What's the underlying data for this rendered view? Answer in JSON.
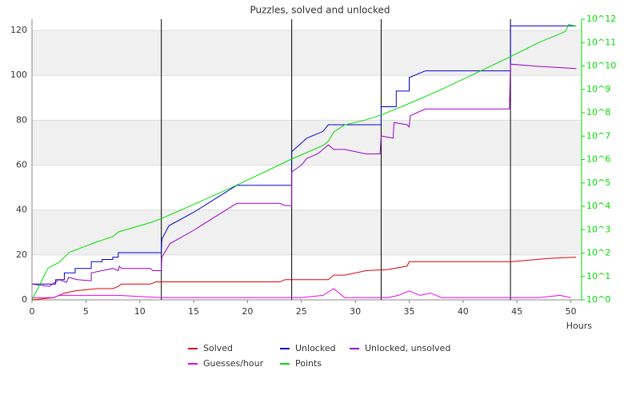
{
  "chart_data": {
    "type": "line",
    "title": "Puzzles, solved and unlocked",
    "x_label": "Hours",
    "xlim": [
      0,
      51
    ],
    "xticks": [
      0,
      5,
      10,
      15,
      20,
      25,
      30,
      35,
      40,
      45,
      50
    ],
    "ylim": [
      0,
      125
    ],
    "yticks": [
      0,
      20,
      40,
      60,
      80,
      100,
      120
    ],
    "y2lim": [
      1,
      1000000000000
    ],
    "y2_log_scale": true,
    "y2ticks": [
      {
        "value": 1,
        "label": "10^0"
      },
      {
        "value": 10,
        "label": "10^1"
      },
      {
        "value": 100,
        "label": "10^2"
      },
      {
        "value": 1000,
        "label": "10^3"
      },
      {
        "value": 10000,
        "label": "10^4"
      },
      {
        "value": 100000,
        "label": "10^5"
      },
      {
        "value": 1000000,
        "label": "10^6"
      },
      {
        "value": 10000000,
        "label": "10^7"
      },
      {
        "value": 100000000,
        "label": "10^8"
      },
      {
        "value": 1000000000,
        "label": "10^9"
      },
      {
        "value": 10000000000,
        "label": "10^10"
      },
      {
        "value": 100000000000,
        "label": "10^11"
      },
      {
        "value": 1000000000000,
        "label": "10^12"
      }
    ],
    "y2_color": "#00dd00",
    "vlines": [
      12,
      24.1,
      32.4,
      44.4
    ],
    "series": [
      {
        "name": "Solved",
        "color": "#dd0000",
        "x": [
          0,
          2,
          3,
          4,
          5,
          6,
          7.5,
          8,
          8.3,
          11,
          11.5,
          12,
          23,
          23.5,
          27.5,
          28,
          29,
          31,
          33,
          34.8,
          35,
          44.5,
          48,
          50.5
        ],
        "values": [
          0,
          1,
          3,
          4,
          4.5,
          5,
          5,
          6,
          7,
          7,
          8,
          8,
          8,
          9,
          9,
          11,
          11,
          13,
          13.5,
          15,
          17,
          17,
          18.5,
          19
        ]
      },
      {
        "name": "Unlocked",
        "color": "#0000cc",
        "x": [
          0,
          1.6,
          2.2,
          2.2,
          3,
          3,
          4,
          4,
          5.5,
          5.5,
          6.5,
          6.5,
          7.5,
          7.5,
          8,
          8,
          12,
          12.05,
          12.7,
          15,
          19,
          24.1,
          24.1,
          25.5,
          27,
          27.5,
          32.4,
          32.4,
          33.8,
          33.8,
          35,
          35,
          36.5,
          44.4,
          44.4,
          50.5
        ],
        "values": [
          7,
          7,
          7,
          9,
          9,
          12,
          12,
          14,
          14,
          17,
          17,
          18,
          18,
          19,
          19,
          21,
          21,
          27,
          33,
          39,
          51,
          51,
          66,
          72,
          75,
          78,
          78,
          86,
          86,
          93,
          93,
          99,
          102,
          102,
          122,
          122
        ]
      },
      {
        "name": "Unlocked, unsolved",
        "color": "#9900cc",
        "x": [
          0,
          1.6,
          2.5,
          3.2,
          3.4,
          4.2,
          5.5,
          5.5,
          7.5,
          8,
          8.1,
          8.3,
          11,
          11.2,
          12,
          12.05,
          12.8,
          15,
          17,
          19,
          23,
          23.5,
          24.1,
          24.1,
          25,
          25.5,
          26.5,
          27.5,
          28,
          29,
          31,
          32.3,
          32.4,
          33.5,
          33.6,
          34.8,
          35,
          35.1,
          36.5,
          44.3,
          44.4,
          47,
          50.5
        ],
        "values": [
          7,
          6,
          9,
          7.8,
          10,
          9,
          8.5,
          12,
          14,
          13,
          15,
          14,
          14,
          13,
          13,
          19,
          25,
          31,
          37,
          43,
          43,
          42,
          42,
          57,
          60,
          63,
          65,
          69,
          67,
          67,
          65,
          65,
          73,
          72,
          79,
          78,
          77,
          82,
          85,
          85,
          105,
          104,
          103
        ]
      },
      {
        "name": "Guesses/hour",
        "color": "#ee00ee",
        "x": [
          0,
          2,
          2.5,
          4,
          8,
          10,
          12,
          25,
          27,
          28,
          29,
          32,
          33,
          34,
          35,
          36,
          37,
          38,
          44,
          47,
          49,
          50
        ],
        "values": [
          1,
          1,
          2,
          2,
          2,
          1.5,
          1,
          1,
          2,
          5,
          1,
          1,
          1,
          2,
          4,
          2,
          3,
          1,
          1,
          1,
          2,
          1
        ]
      },
      {
        "name": "Points",
        "color": "#00dd00",
        "axis": "y2",
        "x": [
          0,
          1.5,
          2.5,
          3.5,
          5,
          6,
          7.5,
          8,
          11,
          12,
          15,
          19,
          24,
          27,
          27.5,
          28,
          29,
          31,
          32.4,
          35,
          38,
          44.4,
          47,
          49.5,
          49.8,
          50.5
        ],
        "values": [
          1,
          23,
          40,
          110,
          200,
          300,
          500,
          800,
          2000,
          3000,
          12000,
          80000,
          1000000,
          4000000,
          6000000,
          15000000,
          30000000,
          50000000,
          80000000,
          250000000,
          1000000000,
          25000000000,
          100000000000,
          300000000000,
          600000000000,
          500000000000
        ]
      }
    ]
  }
}
